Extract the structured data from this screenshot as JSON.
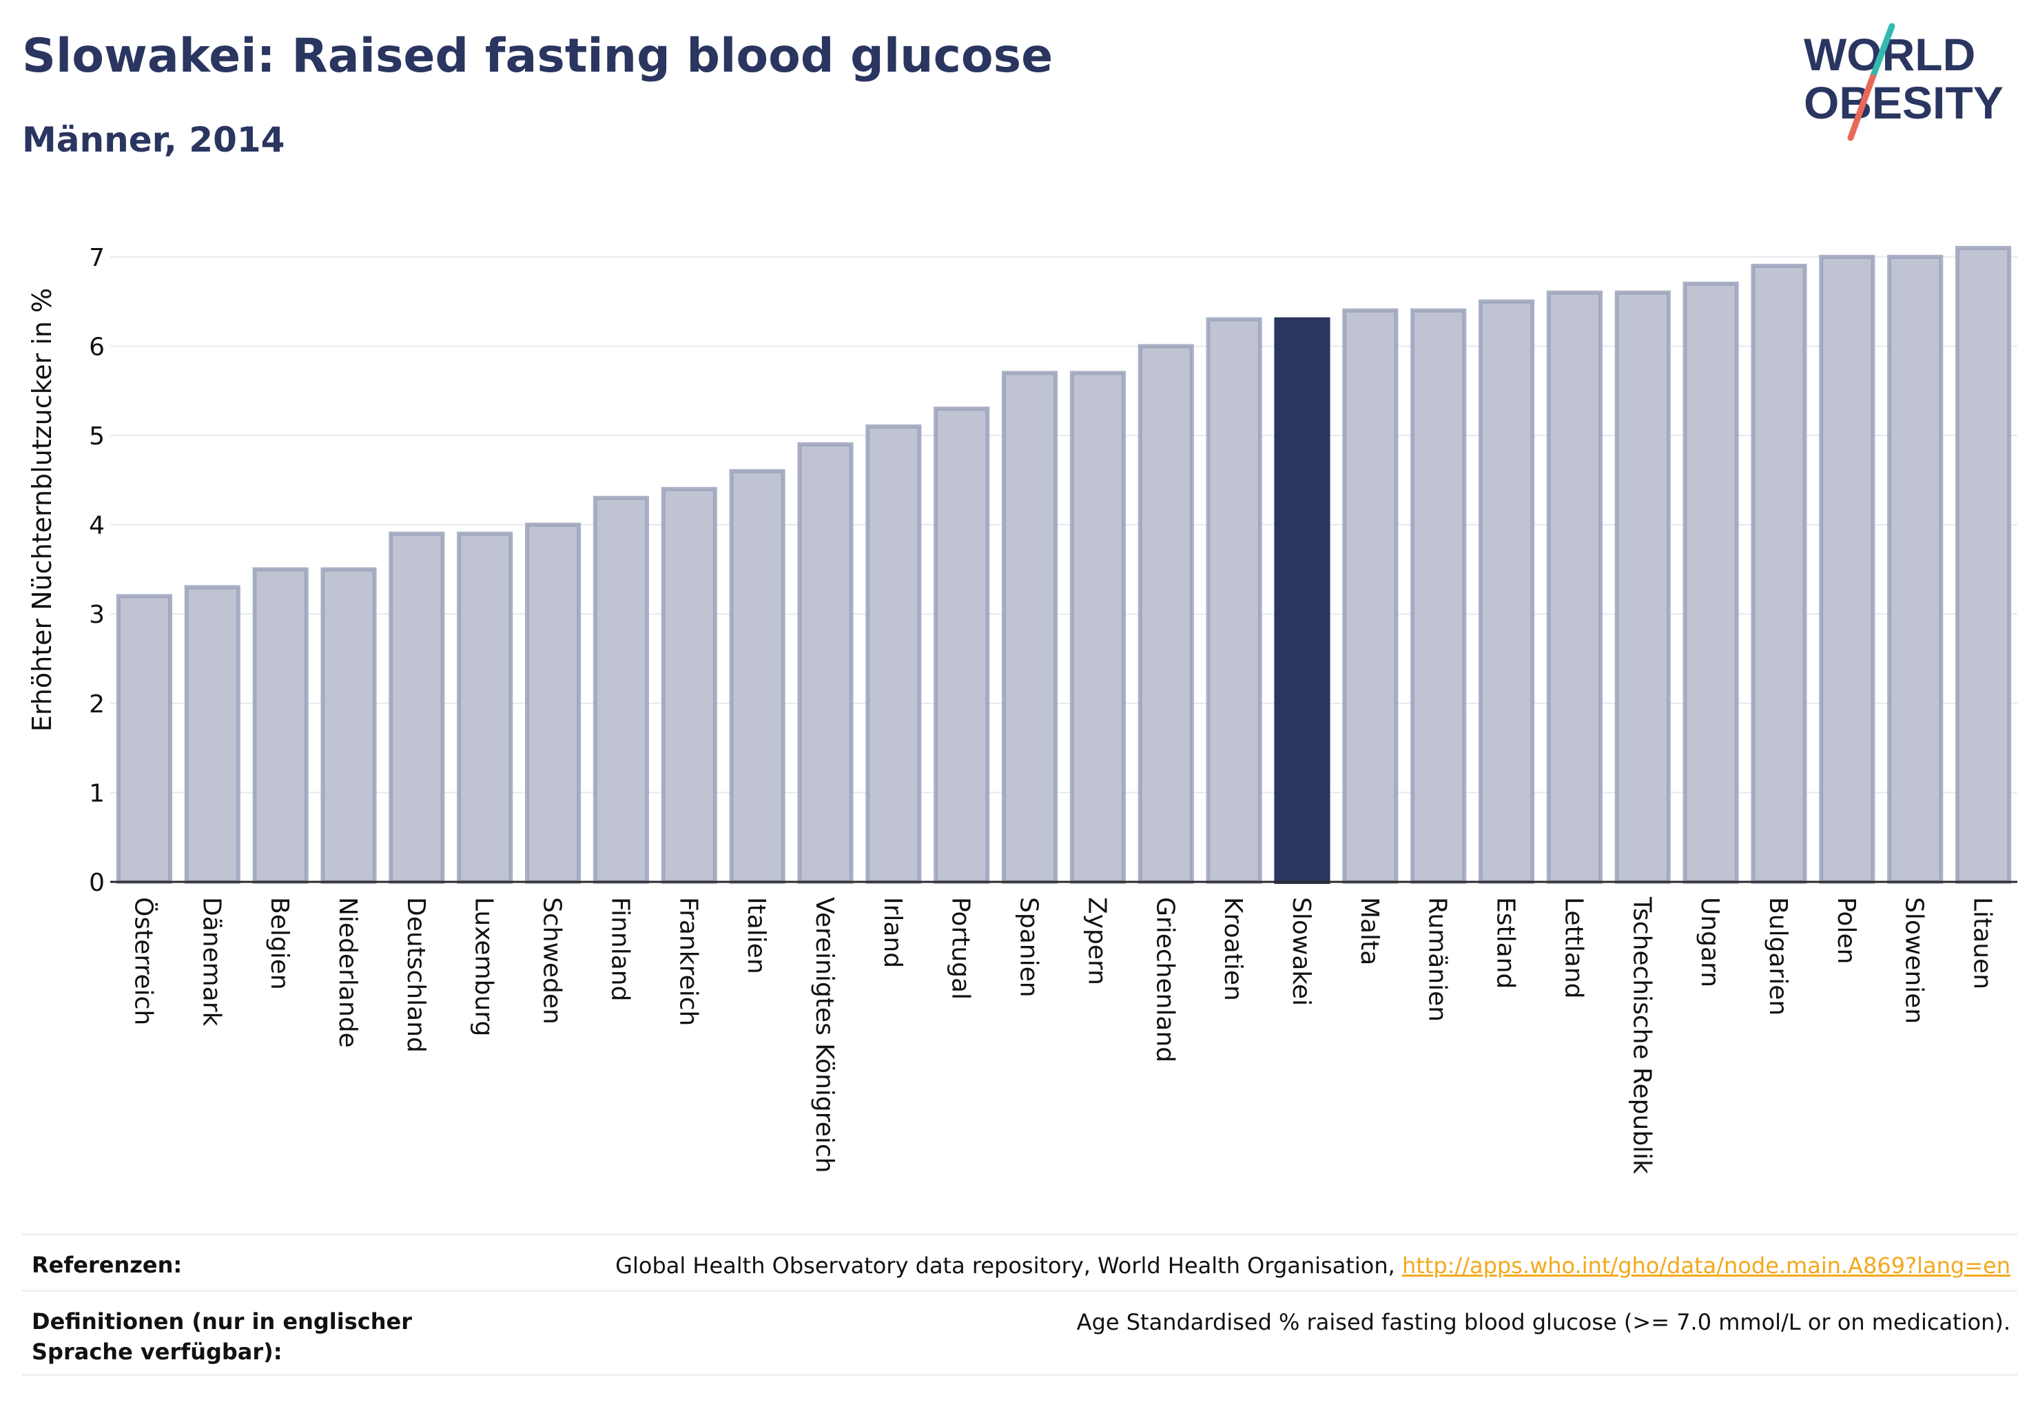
{
  "header": {
    "title": "Slowakei: Raised fasting blood glucose",
    "subtitle": "Männer, 2014"
  },
  "logo": {
    "line1": "WORLD",
    "line2": "OBESITY",
    "text_color": "#2a3560",
    "slash_colors": [
      "#35b8b0",
      "#e8695a"
    ]
  },
  "colors": {
    "bar": "#c0c4d2",
    "bar_stroke": "#9ba3bc",
    "highlight": "#2a3560",
    "grid": "#e7e9f0",
    "axis": "#2a2a2a",
    "link": "#f3a91c"
  },
  "chart_data": {
    "type": "bar",
    "title": "Slowakei: Raised fasting blood glucose",
    "subtitle": "Männer, 2014",
    "xlabel": "",
    "ylabel": "Erhöhter Nüchternblutzucker in %",
    "ylim": [
      0,
      7.3
    ],
    "yticks": [
      0,
      1,
      2,
      3,
      4,
      5,
      6,
      7
    ],
    "grid": true,
    "highlight": "Slowakei",
    "categories": [
      "Österreich",
      "Dänemark",
      "Belgien",
      "Niederlande",
      "Deutschland",
      "Luxemburg",
      "Schweden",
      "Finnland",
      "Frankreich",
      "Italien",
      "Vereinigtes Königreich",
      "Irland",
      "Portugal",
      "Spanien",
      "Zypern",
      "Griechenland",
      "Kroatien",
      "Slowakei",
      "Malta",
      "Rumänien",
      "Estland",
      "Lettland",
      "Tschechische Republik",
      "Ungarn",
      "Bulgarien",
      "Polen",
      "Slowenien",
      "Litauen"
    ],
    "values": [
      3.2,
      3.3,
      3.5,
      3.5,
      3.9,
      3.9,
      4.0,
      4.3,
      4.4,
      4.6,
      4.9,
      5.1,
      5.3,
      5.7,
      5.7,
      6.0,
      6.3,
      6.3,
      6.4,
      6.4,
      6.5,
      6.6,
      6.6,
      6.7,
      6.9,
      7.0,
      7.0,
      7.1
    ]
  },
  "footer": {
    "references_label": "Referenzen:",
    "references_text": "Global Health Observatory data repository, World Health Organisation, ",
    "references_link": "http://apps.who.int/gho/data/node.main.A869?lang=en",
    "definitions_label": "Definitionen (nur in englischer Sprache verfügbar):",
    "definitions_text": "Age Standardised % raised fasting blood glucose (>= 7.0 mmol/L or on medication)."
  }
}
